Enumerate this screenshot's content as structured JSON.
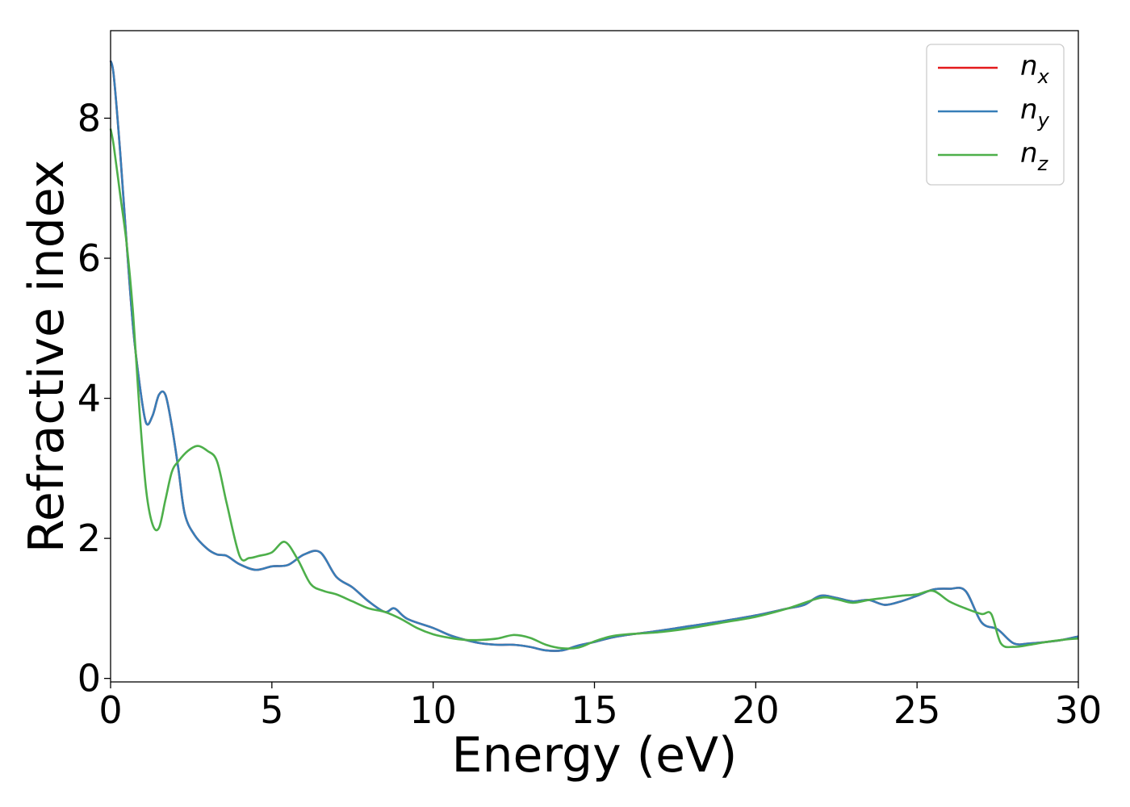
{
  "chart_data": {
    "type": "line",
    "title": "",
    "xlabel": "Energy (eV)",
    "ylabel": "Refractive index",
    "xlim": [
      0,
      30
    ],
    "ylim": [
      -0.05,
      9.25
    ],
    "xticks": [
      0,
      5,
      10,
      15,
      20,
      25,
      30
    ],
    "yticks": [
      0,
      2,
      4,
      6,
      8
    ],
    "grid": false,
    "legend_position": "top-right",
    "series": [
      {
        "name": "n_x",
        "label_main": "n",
        "label_sub": "x",
        "color": "#e41a1c",
        "x": [
          0,
          0.1,
          0.3,
          0.5,
          0.7,
          0.9,
          1.1,
          1.3,
          1.5,
          1.7,
          1.9,
          2.1,
          2.3,
          2.6,
          3.0,
          3.3,
          3.6,
          4.0,
          4.5,
          5.0,
          5.5,
          6.0,
          6.5,
          7.0,
          7.5,
          8.0,
          8.5,
          8.8,
          9.2,
          10.0,
          10.5,
          11.0,
          11.5,
          12.0,
          12.5,
          13.0,
          13.5,
          14.0,
          14.5,
          15.0,
          15.5,
          16.0,
          17.0,
          18.0,
          19.0,
          20.0,
          21.0,
          21.5,
          22.0,
          22.5,
          23.0,
          23.5,
          24.0,
          24.5,
          25.0,
          25.5,
          26.0,
          26.5,
          27.0,
          27.5,
          28.0,
          28.5,
          29.0,
          29.5,
          30.0
        ],
        "values": [
          8.82,
          8.6,
          7.5,
          6.2,
          5.0,
          4.2,
          3.65,
          3.75,
          4.05,
          4.05,
          3.6,
          3.0,
          2.35,
          2.05,
          1.85,
          1.77,
          1.75,
          1.63,
          1.55,
          1.6,
          1.62,
          1.77,
          1.8,
          1.45,
          1.3,
          1.1,
          0.95,
          1.0,
          0.85,
          0.72,
          0.62,
          0.55,
          0.5,
          0.48,
          0.48,
          0.45,
          0.4,
          0.4,
          0.47,
          0.52,
          0.58,
          0.62,
          0.68,
          0.75,
          0.82,
          0.9,
          1.0,
          1.05,
          1.18,
          1.15,
          1.1,
          1.12,
          1.05,
          1.1,
          1.18,
          1.27,
          1.28,
          1.25,
          0.8,
          0.7,
          0.5,
          0.5,
          0.52,
          0.55,
          0.6
        ]
      },
      {
        "name": "n_y",
        "label_main": "n",
        "label_sub": "y",
        "color": "#377eb8",
        "x": [
          0,
          0.1,
          0.3,
          0.5,
          0.7,
          0.9,
          1.1,
          1.3,
          1.5,
          1.7,
          1.9,
          2.1,
          2.3,
          2.6,
          3.0,
          3.3,
          3.6,
          4.0,
          4.5,
          5.0,
          5.5,
          6.0,
          6.5,
          7.0,
          7.5,
          8.0,
          8.5,
          8.8,
          9.2,
          10.0,
          10.5,
          11.0,
          11.5,
          12.0,
          12.5,
          13.0,
          13.5,
          14.0,
          14.5,
          15.0,
          15.5,
          16.0,
          17.0,
          18.0,
          19.0,
          20.0,
          21.0,
          21.5,
          22.0,
          22.5,
          23.0,
          23.5,
          24.0,
          24.5,
          25.0,
          25.5,
          26.0,
          26.5,
          27.0,
          27.5,
          28.0,
          28.5,
          29.0,
          29.5,
          30.0
        ],
        "values": [
          8.82,
          8.6,
          7.5,
          6.2,
          5.0,
          4.2,
          3.65,
          3.75,
          4.05,
          4.05,
          3.6,
          3.0,
          2.35,
          2.05,
          1.85,
          1.77,
          1.75,
          1.63,
          1.55,
          1.6,
          1.62,
          1.77,
          1.8,
          1.45,
          1.3,
          1.1,
          0.95,
          1.0,
          0.85,
          0.72,
          0.62,
          0.55,
          0.5,
          0.48,
          0.48,
          0.45,
          0.4,
          0.4,
          0.47,
          0.52,
          0.58,
          0.62,
          0.68,
          0.75,
          0.82,
          0.9,
          1.0,
          1.05,
          1.18,
          1.15,
          1.1,
          1.12,
          1.05,
          1.1,
          1.18,
          1.27,
          1.28,
          1.25,
          0.8,
          0.7,
          0.5,
          0.5,
          0.52,
          0.55,
          0.6
        ]
      },
      {
        "name": "n_z",
        "label_main": "n",
        "label_sub": "z",
        "color": "#4daf4a",
        "x": [
          0,
          0.1,
          0.3,
          0.5,
          0.7,
          0.9,
          1.1,
          1.3,
          1.5,
          1.7,
          1.9,
          2.1,
          2.4,
          2.7,
          3.0,
          3.3,
          3.6,
          4.0,
          4.3,
          4.6,
          5.0,
          5.4,
          5.8,
          6.2,
          6.6,
          7.0,
          7.5,
          8.0,
          8.5,
          9.0,
          9.5,
          10.0,
          10.5,
          11.0,
          11.5,
          12.0,
          12.5,
          13.0,
          13.5,
          14.0,
          14.5,
          15.0,
          15.5,
          16.0,
          17.0,
          18.0,
          19.0,
          20.0,
          21.0,
          22.0,
          22.5,
          23.0,
          23.5,
          24.0,
          24.5,
          25.0,
          25.5,
          26.0,
          26.5,
          27.0,
          27.3,
          27.6,
          28.0,
          28.5,
          29.0,
          29.5,
          30.0
        ],
        "values": [
          7.85,
          7.6,
          6.9,
          6.2,
          5.2,
          3.8,
          2.7,
          2.2,
          2.15,
          2.55,
          2.95,
          3.1,
          3.25,
          3.32,
          3.25,
          3.1,
          2.5,
          1.75,
          1.72,
          1.75,
          1.8,
          1.95,
          1.7,
          1.35,
          1.25,
          1.2,
          1.1,
          1.0,
          0.95,
          0.85,
          0.72,
          0.63,
          0.58,
          0.55,
          0.55,
          0.57,
          0.62,
          0.58,
          0.48,
          0.43,
          0.44,
          0.53,
          0.6,
          0.63,
          0.66,
          0.72,
          0.8,
          0.88,
          1.0,
          1.15,
          1.13,
          1.08,
          1.12,
          1.15,
          1.18,
          1.2,
          1.25,
          1.1,
          1.0,
          0.92,
          0.92,
          0.5,
          0.45,
          0.48,
          0.52,
          0.55,
          0.57
        ]
      }
    ]
  }
}
